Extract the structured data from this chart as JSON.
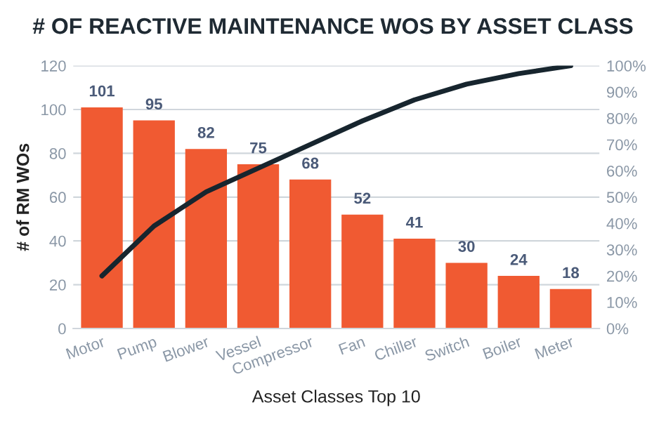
{
  "chart_data": {
    "type": "bar",
    "title": "# OF REACTIVE MAINTENANCE WOS BY ASSET CLASS",
    "xlabel": "Asset Classes Top 10",
    "ylabel": "# of RM WOs",
    "categories": [
      "Motor",
      "Pump",
      "Blower",
      "Vessel",
      "Compressor",
      "Fan",
      "Chiller",
      "Switch",
      "Boiler",
      "Meter"
    ],
    "series": [
      {
        "color": "#f05a32",
        "values": [
          101,
          95,
          82,
          75,
          68,
          52,
          41,
          30,
          24,
          18
        ],
        "value_labels": [
          "101",
          "95",
          "82",
          "75",
          "68",
          "52",
          "41",
          "30",
          "24",
          "18"
        ]
      },
      {
        "type": "line",
        "axis": "y2",
        "color": "#17252e",
        "values": [
          20,
          39,
          52,
          61,
          70,
          79,
          87,
          93,
          97,
          100
        ]
      }
    ],
    "ylim": [
      0,
      120
    ],
    "yticks": [
      0,
      20,
      40,
      60,
      80,
      100,
      120
    ],
    "y2lim": [
      0,
      100
    ],
    "y2ticks": [
      {
        "value": 0,
        "label": "0%"
      },
      {
        "value": 10,
        "label": "10%"
      },
      {
        "value": 20,
        "label": "20%"
      },
      {
        "value": 30,
        "label": "30%"
      },
      {
        "value": 40,
        "label": "40%"
      },
      {
        "value": 50,
        "label": "50%"
      },
      {
        "value": 60,
        "label": "60%"
      },
      {
        "value": 70,
        "label": "70%"
      },
      {
        "value": 80,
        "label": "80%"
      },
      {
        "value": 90,
        "label": "90%"
      },
      {
        "value": 100,
        "label": "100%"
      }
    ],
    "grid": "y",
    "legend": false,
    "marker": "none",
    "line_style": "solid"
  }
}
